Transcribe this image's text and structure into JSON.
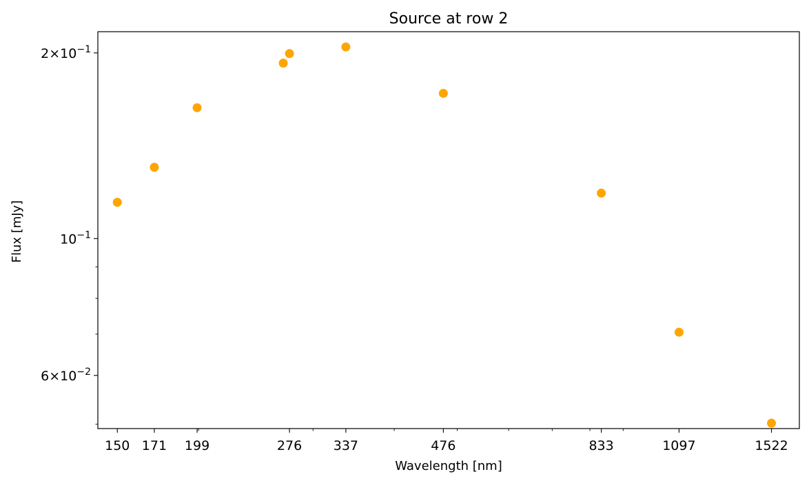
{
  "chart_data": {
    "type": "scatter",
    "title": "Source at row 2",
    "xlabel": "Wavelength [nm]",
    "ylabel": "Flux [mJy]",
    "xscale": "log",
    "yscale": "log",
    "xlim": [
      140,
      1680
    ],
    "ylim": [
      0.0492,
      0.2165
    ],
    "grid": false,
    "x_ticks": [
      150,
      171,
      199,
      276,
      337,
      476,
      833,
      1097,
      1522
    ],
    "x_tick_labels": [
      "150",
      "171",
      "199",
      "276",
      "337",
      "476",
      "833",
      "1097",
      "1522"
    ],
    "y_ticks": [
      0.06,
      0.1,
      0.2
    ],
    "y_tick_labels": [
      {
        "mantissa": "6",
        "exponent": "−2"
      },
      {
        "mantissa": "",
        "exponent": "−1"
      },
      {
        "mantissa": "2",
        "exponent": "−1"
      }
    ],
    "marker_color": "#ffa500",
    "points": [
      {
        "x": 150,
        "y": 0.1145
      },
      {
        "x": 171,
        "y": 0.1305
      },
      {
        "x": 199,
        "y": 0.163
      },
      {
        "x": 270,
        "y": 0.1925
      },
      {
        "x": 276,
        "y": 0.1995
      },
      {
        "x": 337,
        "y": 0.2045
      },
      {
        "x": 476,
        "y": 0.172
      },
      {
        "x": 833,
        "y": 0.1185
      },
      {
        "x": 1097,
        "y": 0.0705
      },
      {
        "x": 1522,
        "y": 0.0502
      }
    ]
  }
}
